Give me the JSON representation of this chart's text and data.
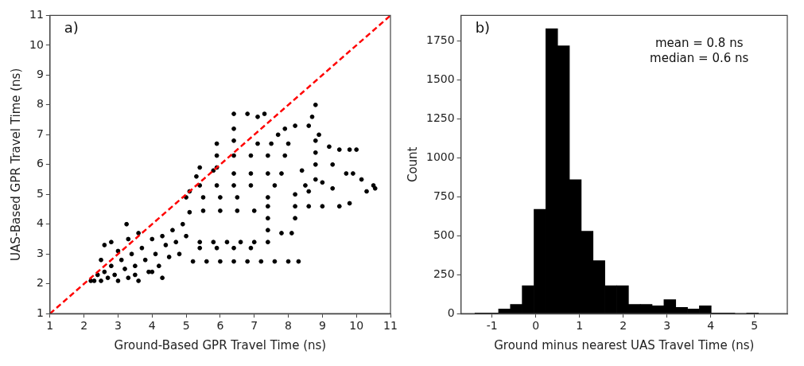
{
  "chart_data": [
    {
      "type": "scatter",
      "xlabel": "Ground-Based GPR Travel Time (ns)",
      "ylabel": "UAS-Based GPR Travel Time (ns)",
      "xlim": [
        1,
        11
      ],
      "ylim": [
        1,
        11
      ],
      "xticks": [
        1,
        2,
        3,
        4,
        5,
        6,
        7,
        8,
        9,
        10,
        11
      ],
      "yticks": [
        1,
        2,
        3,
        4,
        5,
        6,
        7,
        8,
        9,
        10,
        11
      ],
      "grid": false,
      "legend": false,
      "marker": "circle",
      "annotations": [
        "a)"
      ],
      "series": [
        {
          "color": "#000000",
          "x": [
            2.3,
            2.4,
            2.5,
            2.6,
            2.7,
            2.8,
            2.9,
            3.0,
            3.1,
            3.2,
            3.3,
            3.4,
            3.5,
            3.6,
            3.7,
            3.8,
            3.9,
            4.0,
            4.1,
            4.2,
            4.3,
            4.4,
            4.5,
            4.6,
            4.7,
            4.8,
            4.9,
            5.0,
            2.6,
            2.8,
            3.0,
            3.3,
            3.6,
            2.5,
            3.5,
            4.0,
            4.3,
            2.2,
            3.25,
            5.2,
            5.6,
            6.0,
            6.4,
            6.8,
            7.2,
            7.6,
            8.0,
            8.3,
            5.4,
            5.8,
            6.2,
            6.6,
            7.0,
            7.4,
            5.4,
            5.9,
            6.4,
            6.9,
            7.4,
            7.4,
            7.4,
            7.8,
            8.1,
            8.2,
            8.2,
            8.2,
            8.6,
            9.0,
            9.5,
            9.8,
            5.1,
            5.5,
            6.0,
            6.5,
            7.0,
            5.0,
            5.5,
            6.0,
            6.5,
            7.4,
            5.4,
            5.9,
            6.4,
            6.9,
            7.6,
            6.4,
            6.9,
            7.4,
            7.8,
            5.4,
            5.9,
            5.1,
            5.3,
            6.4,
            6.9,
            7.4,
            7.9,
            7.1,
            7.5,
            8.0,
            7.7,
            7.1,
            6.4,
            6.8,
            7.3,
            6.4,
            6.4,
            5.9,
            5.9,
            5.8,
            8.8,
            8.7,
            8.6,
            8.2,
            7.9,
            8.8,
            8.8,
            8.8,
            9.3,
            8.9,
            9.2,
            9.5,
            9.8,
            10.0,
            9.7,
            9.9,
            10.15,
            10.3,
            10.5,
            10.55,
            8.5,
            8.8,
            9.0,
            9.3,
            8.4,
            8.6
          ],
          "values": [
            2.1,
            2.3,
            2.1,
            2.4,
            2.2,
            2.6,
            2.3,
            2.1,
            2.8,
            2.5,
            2.2,
            3.0,
            2.6,
            2.1,
            3.2,
            2.8,
            2.4,
            3.5,
            3.0,
            2.6,
            3.6,
            3.3,
            2.9,
            3.8,
            3.4,
            3.0,
            4.0,
            3.6,
            3.3,
            3.4,
            3.1,
            3.5,
            3.7,
            2.8,
            2.3,
            2.4,
            2.2,
            2.1,
            4.0,
            2.75,
            2.75,
            2.75,
            2.75,
            2.75,
            2.75,
            2.75,
            2.75,
            2.75,
            3.4,
            3.4,
            3.4,
            3.4,
            3.4,
            3.4,
            3.2,
            3.2,
            3.2,
            3.2,
            3.8,
            4.2,
            4.6,
            3.7,
            3.7,
            4.2,
            4.6,
            5.0,
            4.6,
            4.6,
            4.6,
            4.7,
            4.4,
            4.45,
            4.45,
            4.45,
            4.45,
            4.9,
            4.9,
            4.9,
            4.9,
            4.9,
            5.3,
            5.3,
            5.3,
            5.3,
            5.3,
            5.7,
            5.7,
            5.7,
            5.7,
            5.9,
            5.9,
            5.1,
            5.6,
            6.3,
            6.3,
            6.3,
            6.3,
            6.7,
            6.7,
            6.7,
            7.0,
            7.6,
            7.7,
            7.7,
            7.7,
            7.2,
            6.8,
            6.7,
            6.3,
            5.8,
            8.0,
            7.6,
            7.3,
            7.3,
            7.2,
            6.8,
            6.4,
            6.0,
            6.0,
            7.0,
            6.6,
            6.5,
            6.5,
            6.5,
            5.7,
            5.7,
            5.5,
            5.1,
            5.3,
            5.2,
            5.3,
            5.5,
            5.4,
            5.2,
            5.8,
            5.1
          ]
        },
        {
          "type": "line",
          "color": "#ff0000",
          "line_style": "dashed",
          "marker": "none",
          "x": [
            1,
            11
          ],
          "values": [
            1,
            11
          ]
        }
      ]
    },
    {
      "type": "histogram",
      "xlabel": "Ground minus nearest UAS Travel Time (ns)",
      "ylabel": "Count",
      "xlim": [
        -1.71,
        5.75
      ],
      "ylim": [
        0,
        1915
      ],
      "xticks": [
        -1,
        0,
        1,
        2,
        3,
        4,
        5
      ],
      "yticks": [
        0,
        250,
        500,
        750,
        1000,
        1250,
        1500,
        1750
      ],
      "grid": false,
      "legend": false,
      "color": "#000000",
      "annotations": [
        "b)",
        "mean = 0.8 ns",
        "median = 0.6 ns"
      ],
      "bins": [
        -1.39,
        -1.12,
        -0.85,
        -0.58,
        -0.31,
        -0.04,
        0.23,
        0.5,
        0.77,
        1.04,
        1.31,
        1.58,
        1.85,
        2.12,
        2.39,
        2.66,
        2.93,
        3.2,
        3.47,
        3.74,
        4.01,
        4.28,
        4.55,
        4.82,
        5.09
      ],
      "values": [
        5,
        5,
        30,
        60,
        180,
        670,
        1830,
        1720,
        860,
        530,
        340,
        180,
        180,
        60,
        60,
        50,
        90,
        40,
        30,
        50,
        5,
        5,
        0,
        5
      ]
    }
  ]
}
